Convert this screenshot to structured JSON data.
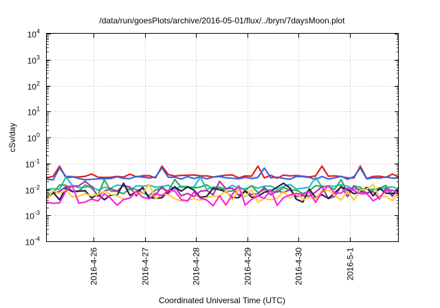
{
  "chart_data": {
    "type": "line",
    "title": "/data/run/goesPlots/archive/2016-05-01/flux/../bryn/7daysMoon.plot",
    "xlabel": "Coordinated Universal Time (UTC)",
    "ylabel": "cSv/day",
    "y_scale": "log",
    "ylim": [
      0.0001,
      10000
    ],
    "xlim": [
      "2016-04-25T02:00",
      "2016-05-01T23:00"
    ],
    "grid": true,
    "y_ticks": [
      {
        "value": 0.0001,
        "base": "10",
        "exp": "-4"
      },
      {
        "value": 0.001,
        "base": "10",
        "exp": "-3"
      },
      {
        "value": 0.01,
        "base": "10",
        "exp": "-2"
      },
      {
        "value": 0.1,
        "base": "10",
        "exp": "-1"
      },
      {
        "value": 1,
        "base": "10",
        "exp": "0"
      },
      {
        "value": 10,
        "base": "10",
        "exp": "1"
      },
      {
        "value": 100,
        "base": "10",
        "exp": "2"
      },
      {
        "value": 1000,
        "base": "10",
        "exp": "3"
      },
      {
        "value": 10000,
        "base": "10",
        "exp": "4"
      }
    ],
    "x_ticks": [
      {
        "value": "2016-04-26T00:00",
        "label": "2016-4-26"
      },
      {
        "value": "2016-04-27T00:00",
        "label": "2016-4-27"
      },
      {
        "value": "2016-04-28T00:00",
        "label": "2016-4-28"
      },
      {
        "value": "2016-04-29T00:00",
        "label": "2016-4-29"
      },
      {
        "value": "2016-04-30T00:00",
        "label": "2016-4-30"
      },
      {
        "value": "2016-05-01T00:00",
        "label": "2016-5-1"
      }
    ],
    "series": [
      {
        "color": "#e41a1c",
        "level": 0.033,
        "spread": 0.08,
        "spike_dates": [
          "2016-04-25T07:00",
          "2016-04-27T08:00",
          "2016-04-29T06:00",
          "2016-04-30T11:00",
          "2016-05-01T04:00"
        ]
      },
      {
        "color": "#3366dd",
        "level": 0.028,
        "spread": 0.06,
        "spike_dates": [
          "2016-04-25T08:00",
          "2016-04-27T09:00",
          "2016-04-29T07:00",
          "2016-05-01T04:00"
        ]
      },
      {
        "color": "#20c0c0",
        "level": 0.0125,
        "spread": 0.1,
        "spike_dates": [
          "2016-04-25T12:00",
          "2016-04-28T03:00",
          "2016-04-30T08:00"
        ]
      },
      {
        "color": "#33aa55",
        "level": 0.01,
        "spread": 0.18,
        "spike_dates": [
          "2016-04-26T05:00",
          "2016-04-27T15:00",
          "2016-04-30T20:00"
        ]
      },
      {
        "color": "#aa33aa",
        "level": 0.0085,
        "spread": 0.22,
        "spike_dates": [
          "2016-04-25T20:00",
          "2016-04-28T10:00"
        ]
      },
      {
        "color": "#222244",
        "level": 0.0072,
        "spread": 0.26,
        "spike_dates": [
          "2016-04-26T14:00",
          "2016-04-29T16:00"
        ]
      },
      {
        "color": "#ffcc33",
        "level": 0.0066,
        "spread": 0.26,
        "spike_dates": [
          "2016-04-27T02:00",
          "2016-05-01T10:00"
        ]
      },
      {
        "color": "#ff22dd",
        "level": 0.0058,
        "spread": 0.3,
        "spike_dates": [
          "2016-04-25T15:00",
          "2016-04-28T20:00",
          "2016-04-30T15:00"
        ]
      }
    ]
  }
}
